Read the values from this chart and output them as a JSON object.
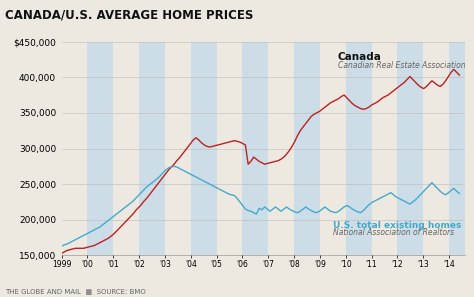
{
  "title": "CANADA/U.S. AVERAGE HOME PRICES",
  "canada_label": "Canada",
  "canada_sublabel": "Canadian Real Estate Association",
  "us_label": "U.S. total existing homes",
  "us_sublabel": "National Association of Realtors",
  "footer": "THE GLOBE AND MAIL  ▦  SOURCE: BMO",
  "canada_color": "#bb2222",
  "us_color": "#44aacc",
  "bg_color": "#ede8e0",
  "strip_color": "#ccdde8",
  "plot_bg": "#ede8e0",
  "ylim": [
    150000,
    450000
  ],
  "yticks": [
    150000,
    200000,
    250000,
    300000,
    350000,
    400000,
    450000
  ],
  "xlim_start": 1999,
  "xlim_end": 2014.6,
  "canada_data": [
    153000,
    155000,
    157000,
    158000,
    159000,
    160000,
    160000,
    160000,
    160000,
    161000,
    162000,
    163000,
    164000,
    166000,
    168000,
    170000,
    172000,
    174000,
    177000,
    180000,
    184000,
    188000,
    192000,
    196000,
    200000,
    204000,
    208000,
    213000,
    217000,
    221000,
    226000,
    230000,
    235000,
    240000,
    245000,
    250000,
    255000,
    260000,
    265000,
    270000,
    274000,
    278000,
    283000,
    287000,
    292000,
    297000,
    302000,
    307000,
    312000,
    315000,
    312000,
    308000,
    305000,
    303000,
    302000,
    303000,
    304000,
    305000,
    306000,
    307000,
    308000,
    309000,
    310000,
    311000,
    310000,
    309000,
    307000,
    305000,
    278000,
    282000,
    288000,
    285000,
    282000,
    280000,
    278000,
    279000,
    280000,
    281000,
    282000,
    283000,
    285000,
    288000,
    292000,
    297000,
    303000,
    310000,
    318000,
    325000,
    330000,
    335000,
    340000,
    345000,
    348000,
    350000,
    352000,
    355000,
    358000,
    361000,
    364000,
    366000,
    368000,
    370000,
    373000,
    375000,
    371000,
    367000,
    363000,
    360000,
    358000,
    356000,
    355000,
    356000,
    358000,
    361000,
    363000,
    365000,
    368000,
    371000,
    373000,
    375000,
    378000,
    381000,
    384000,
    387000,
    390000,
    393000,
    397000,
    401000,
    397000,
    393000,
    389000,
    386000,
    384000,
    387000,
    391000,
    395000,
    392000,
    389000,
    387000,
    390000,
    395000,
    401000,
    407000,
    411000,
    407000,
    403000
  ],
  "us_data": [
    163000,
    165000,
    166000,
    168000,
    170000,
    172000,
    174000,
    176000,
    178000,
    180000,
    182000,
    184000,
    186000,
    188000,
    190000,
    193000,
    196000,
    199000,
    202000,
    205000,
    208000,
    211000,
    214000,
    217000,
    220000,
    223000,
    226000,
    230000,
    234000,
    238000,
    242000,
    246000,
    249000,
    252000,
    255000,
    258000,
    262000,
    266000,
    270000,
    273000,
    274000,
    275000,
    274000,
    272000,
    270000,
    268000,
    266000,
    264000,
    262000,
    260000,
    258000,
    256000,
    254000,
    252000,
    250000,
    248000,
    246000,
    244000,
    242000,
    240000,
    238000,
    236000,
    235000,
    234000,
    230000,
    225000,
    220000,
    215000,
    213000,
    212000,
    210000,
    208000,
    216000,
    214000,
    218000,
    215000,
    212000,
    215000,
    218000,
    215000,
    212000,
    215000,
    218000,
    215000,
    213000,
    211000,
    210000,
    212000,
    215000,
    218000,
    215000,
    213000,
    211000,
    210000,
    212000,
    215000,
    218000,
    215000,
    212000,
    211000,
    210000,
    212000,
    215000,
    218000,
    220000,
    218000,
    215000,
    213000,
    211000,
    210000,
    213000,
    217000,
    221000,
    224000,
    226000,
    228000,
    230000,
    232000,
    234000,
    236000,
    238000,
    235000,
    232000,
    230000,
    228000,
    226000,
    224000,
    222000,
    225000,
    228000,
    232000,
    236000,
    240000,
    244000,
    248000,
    252000,
    248000,
    244000,
    240000,
    237000,
    235000,
    238000,
    241000,
    244000,
    240000,
    237000
  ]
}
